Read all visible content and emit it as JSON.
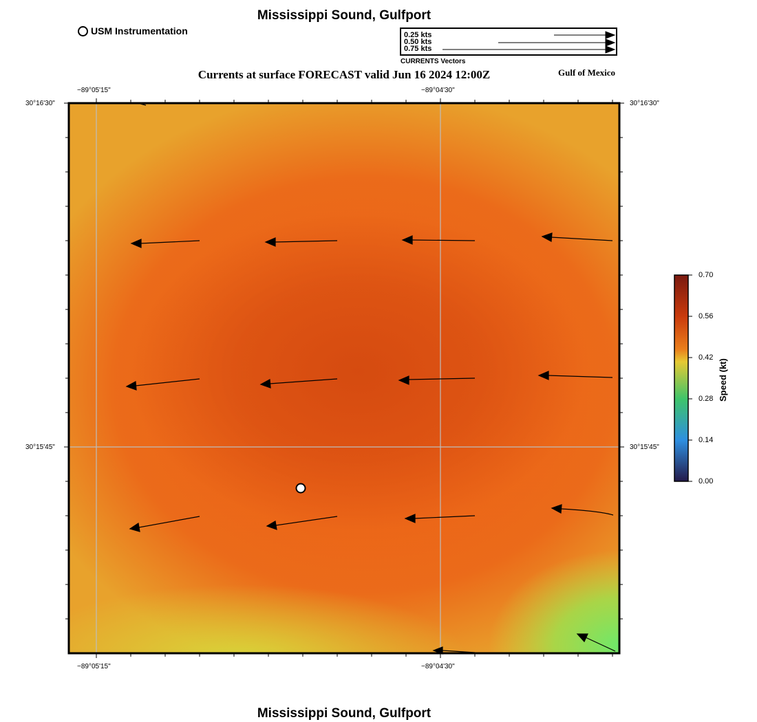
{
  "header": {
    "title": "Mississippi Sound, Gulfport",
    "subtitle": "Currents at surface FORECAST valid Jun 16 2024 12:00Z",
    "region": "Gulf of Mexico",
    "footer_title": "Mississippi Sound, Gulfport"
  },
  "legend": {
    "station_label": "USM Instrumentation",
    "vector_caption": "CURRENTS Vectors",
    "scale_labels": [
      "0.25 kts",
      "0.50 kts",
      "0.75 kts"
    ]
  },
  "map": {
    "lon_ticks": [
      "−89°05'15\"",
      "−89°04'30\""
    ],
    "lat_ticks": [
      "30°16'30\"",
      "30°15'45\""
    ]
  },
  "colorbar": {
    "title": "Speed (kt)",
    "tick_labels": [
      "0.70",
      "0.56",
      "0.42",
      "0.28",
      "0.14",
      "0.00"
    ],
    "colors": [
      "#7a1a10",
      "#c93a0c",
      "#ea7f1c",
      "#e6c933",
      "#3fc46a",
      "#2e8fe0",
      "#241a4a"
    ]
  },
  "colors": {
    "field_core": "#d44a10",
    "field_mid": "#ec5d15",
    "field_edge": "#e8a22c",
    "field_low": "#d7d83a",
    "field_min": "#6ee86a"
  }
}
